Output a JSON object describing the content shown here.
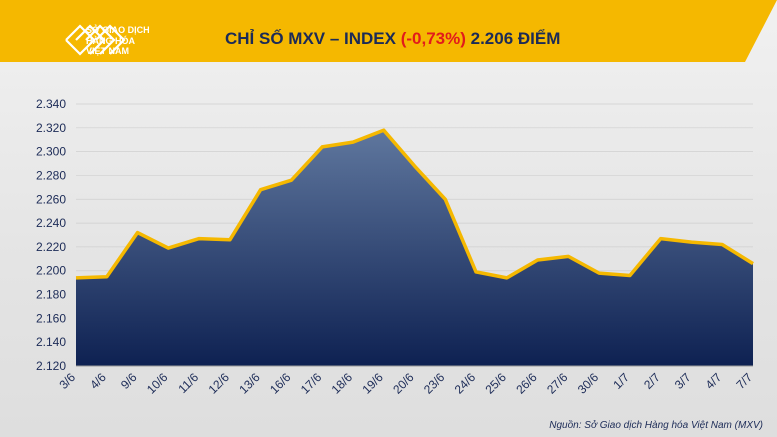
{
  "header": {
    "logo_lines": [
      "SỞ GIAO DỊCH",
      "HÀNG HÓA",
      "VIỆT NAM"
    ],
    "title_prefix": "CHỈ SỐ MXV – INDEX ",
    "title_change": "(-0,73%)",
    "title_value": " 2.206 ĐIỂM"
  },
  "source_note": "Nguồn: Sở Giao dịch Hàng hóa Việt Nam (MXV)",
  "colors": {
    "banner": "#f5b800",
    "line": "#f5b800",
    "area_top": "#5f779e",
    "area_bottom": "#0e2152",
    "title": "#1c2b57",
    "negative": "#e21b1b"
  },
  "chart_data": {
    "type": "area",
    "title": "",
    "xlabel": "",
    "ylabel": "",
    "categories": [
      "3/6",
      "4/6",
      "9/6",
      "10/6",
      "11/6",
      "12/6",
      "13/6",
      "16/6",
      "17/6",
      "18/6",
      "19/6",
      "20/6",
      "23/6",
      "24/6",
      "25/6",
      "26/6",
      "27/6",
      "30/6",
      "1/7",
      "2/7",
      "3/7",
      "4/7",
      "7/7"
    ],
    "values": [
      2194,
      2195,
      2232,
      2219,
      2227,
      2226,
      2268,
      2276,
      2304,
      2308,
      2318,
      2288,
      2260,
      2199,
      2194,
      2209,
      2212,
      2198,
      2196,
      2227,
      2224,
      2222,
      2206
    ],
    "ylim": [
      2120,
      2340
    ],
    "yticks": [
      "2.120",
      "2.140",
      "2.160",
      "2.180",
      "2.200",
      "2.220",
      "2.240",
      "2.260",
      "2.280",
      "2.300",
      "2.320",
      "2.340"
    ],
    "grid": true,
    "legend": "none"
  }
}
